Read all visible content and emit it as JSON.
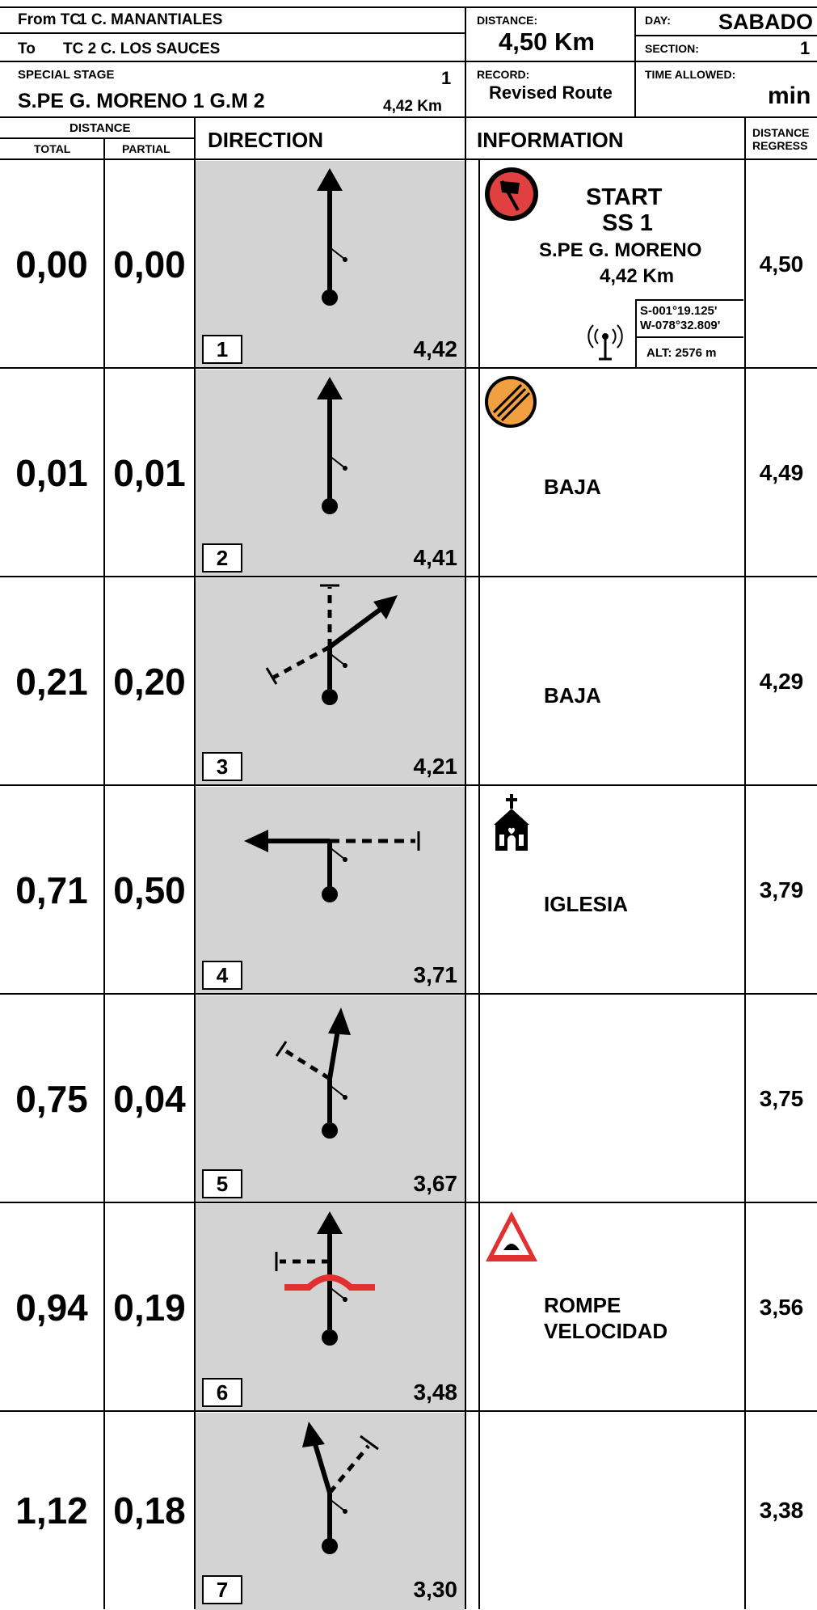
{
  "header": {
    "from_label": "From TC",
    "from_value": "1 C. MANANTIALES",
    "to_label": "To",
    "to_value": "TC  2 C. LOS SAUCES",
    "special_stage_label": "SPECIAL STAGE",
    "special_stage_number": "1",
    "stage_name": "S.PE G. MORENO 1 G.M 2",
    "stage_length": "4,42  Km",
    "distance_label": "DISTANCE:",
    "distance_value": "4,50 Km",
    "record_label": "RECORD:",
    "record_value": "Revised Route",
    "day_label": "DAY:",
    "day_value": "SABADO",
    "section_label": "SECTION:",
    "section_value": "1",
    "time_allowed_label": "TIME ALLOWED:",
    "time_allowed_value": "min"
  },
  "columns": {
    "distance": "DISTANCE",
    "total": "TOTAL",
    "partial": "PARTIAL",
    "direction": "DIRECTION",
    "information": "INFORMATION",
    "distance_regress_1": "DISTANCE",
    "distance_regress_2": "REGRESS"
  },
  "rows": [
    {
      "total": "0,00",
      "partial": "0,00",
      "box": "1",
      "dist_to_end": "4,42",
      "regress": "4,50",
      "icon": "start-flag-icon",
      "info": {
        "start": "START",
        "ss": "SS 1",
        "name": "S.PE G. MORENO",
        "length": "4,42  Km",
        "coord1": "S-001°19.125'",
        "coord2": "W-078°32.809'",
        "alt": "ALT: 2576  m"
      }
    },
    {
      "total": "0,01",
      "partial": "0,01",
      "box": "2",
      "dist_to_end": "4,41",
      "regress": "4,49",
      "icon": "end-of-restriction-icon",
      "text1": "BAJA",
      "text2": ""
    },
    {
      "total": "0,21",
      "partial": "0,20",
      "box": "3",
      "dist_to_end": "4,21",
      "regress": "4,29",
      "icon": "",
      "text1": "BAJA",
      "text2": ""
    },
    {
      "total": "0,71",
      "partial": "0,50",
      "box": "4",
      "dist_to_end": "3,71",
      "regress": "3,79",
      "icon": "church-icon",
      "text1": "IGLESIA",
      "text2": ""
    },
    {
      "total": "0,75",
      "partial": "0,04",
      "box": "5",
      "dist_to_end": "3,67",
      "regress": "3,75",
      "icon": "",
      "text1": "",
      "text2": ""
    },
    {
      "total": "0,94",
      "partial": "0,19",
      "box": "6",
      "dist_to_end": "3,48",
      "regress": "3,56",
      "icon": "speed-bump-warning-icon",
      "text1": "ROMPE",
      "text2": "VELOCIDAD"
    },
    {
      "total": "1,12",
      "partial": "0,18",
      "box": "7",
      "dist_to_end": "3,30",
      "regress": "3,38",
      "icon": "",
      "text1": "",
      "text2": ""
    }
  ]
}
